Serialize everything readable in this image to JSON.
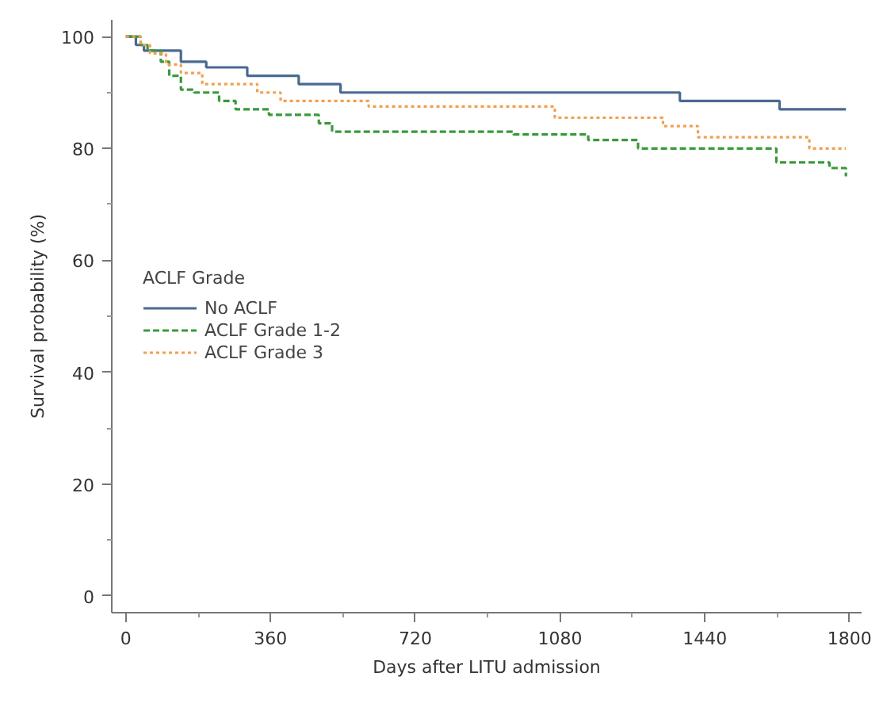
{
  "chart_data": {
    "type": "step",
    "xlabel": "Days after LITU admission",
    "ylabel": "Survival probability (%)",
    "legend_title": "ACLF Grade",
    "legend": "left",
    "xlim": [
      -35,
      1830
    ],
    "ylim": [
      -3,
      103
    ],
    "xticks": [
      0,
      {
        "value": 180,
        "label": null
      },
      360,
      {
        "value": 540,
        "label": null
      },
      720,
      {
        "value": 900,
        "label": null
      },
      1080,
      {
        "value": 1260,
        "label": null
      },
      1440,
      {
        "value": 1620,
        "label": null
      },
      1800
    ],
    "yticks": [
      0,
      {
        "value": 10,
        "label": null
      },
      20,
      {
        "value": 30,
        "label": null
      },
      40,
      {
        "value": 50,
        "label": null
      },
      60,
      {
        "value": 70,
        "label": null
      },
      80,
      {
        "value": 90,
        "label": null
      },
      100
    ],
    "grid": false,
    "series": [
      {
        "name": "No ACLF",
        "color": "#4a6a90",
        "line_style": "solid",
        "x": [
          0,
          25,
          45,
          137,
          200,
          302,
          430,
          534,
          1378,
          1626,
          1791
        ],
        "values": [
          100,
          98.5,
          97.5,
          95.5,
          94.5,
          93,
          91.5,
          90,
          88.5,
          87,
          87
        ]
      },
      {
        "name": "ACLF Grade 1-2",
        "color": "#3a9a3a",
        "line_style": "dashed",
        "x": [
          0,
          37,
          54,
          87,
          108,
          137,
          170,
          232,
          273,
          356,
          480,
          513,
          964,
          1150,
          1274,
          1618,
          1750,
          1791
        ],
        "values": [
          100,
          98.5,
          97.5,
          95.5,
          93,
          90.5,
          90,
          88.5,
          87,
          86,
          84.5,
          83,
          82.5,
          81.5,
          80,
          77.5,
          76.5,
          75
        ]
      },
      {
        "name": "ACLF Grade 3",
        "color": "#f0a050",
        "line_style": "dotted",
        "x": [
          0,
          37,
          60,
          100,
          137,
          190,
          327,
          385,
          604,
          1067,
          1336,
          1423,
          1700,
          1791
        ],
        "values": [
          100,
          98.5,
          97,
          95,
          93.5,
          91.5,
          90,
          88.5,
          87.5,
          85.5,
          84,
          82,
          80,
          80
        ]
      }
    ]
  }
}
